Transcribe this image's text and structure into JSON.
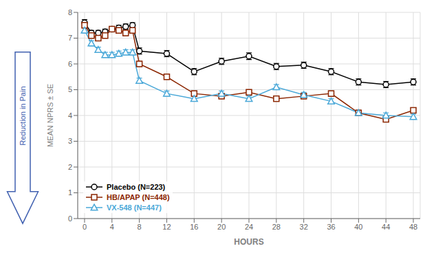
{
  "chart_data": {
    "type": "line",
    "x": [
      0,
      1,
      2,
      3,
      4,
      5,
      6,
      7,
      8,
      12,
      16,
      20,
      24,
      28,
      32,
      36,
      40,
      44,
      48
    ],
    "series": [
      {
        "name": "Placebo (N=223)",
        "color": "#000000",
        "marker": "circle",
        "values": [
          7.6,
          7.2,
          7.2,
          7.25,
          7.35,
          7.4,
          7.45,
          7.5,
          6.5,
          6.4,
          5.7,
          6.1,
          6.3,
          5.9,
          5.95,
          5.7,
          5.3,
          5.2,
          5.3
        ],
        "errors": [
          0.12,
          0.1,
          0.1,
          0.1,
          0.1,
          0.1,
          0.1,
          0.1,
          0.12,
          0.12,
          0.12,
          0.12,
          0.13,
          0.12,
          0.12,
          0.12,
          0.12,
          0.12,
          0.12
        ]
      },
      {
        "name": "HB/APAP (N=448)",
        "color": "#8B2500",
        "marker": "square",
        "values": [
          7.5,
          7.1,
          7.0,
          7.1,
          7.35,
          7.3,
          7.2,
          7.3,
          6.0,
          5.5,
          4.85,
          4.75,
          4.9,
          4.65,
          4.75,
          4.85,
          4.1,
          3.85,
          4.2
        ],
        "errors": [
          0.1,
          0.1,
          0.1,
          0.1,
          0.1,
          0.1,
          0.1,
          0.1,
          0.1,
          0.1,
          0.1,
          0.1,
          0.1,
          0.1,
          0.1,
          0.1,
          0.1,
          0.1,
          0.1
        ]
      },
      {
        "name": "VX-548 (N=447)",
        "color": "#4AA8D8",
        "marker": "triangle",
        "values": [
          7.3,
          6.8,
          6.55,
          6.35,
          6.35,
          6.4,
          6.45,
          6.45,
          5.35,
          4.85,
          4.65,
          4.85,
          4.65,
          5.1,
          4.8,
          4.55,
          4.1,
          4.0,
          3.95
        ],
        "errors": [
          0.1,
          0.1,
          0.1,
          0.1,
          0.1,
          0.1,
          0.1,
          0.1,
          0.1,
          0.1,
          0.1,
          0.1,
          0.1,
          0.1,
          0.1,
          0.1,
          0.1,
          0.1,
          0.1
        ]
      }
    ],
    "x_label": "HOURS",
    "y_label": "MEAN NPRS ± SE",
    "xlim": [
      -1,
      49
    ],
    "xticks": [
      0,
      4,
      8,
      12,
      16,
      20,
      24,
      28,
      32,
      36,
      40,
      44,
      48
    ],
    "ylim": [
      0,
      8
    ],
    "yticks": [
      0,
      1,
      2,
      3,
      4,
      5,
      6,
      7,
      8
    ],
    "grid": true,
    "legend": "lower left",
    "annotations": [
      {
        "text": "Reduction in Pain",
        "color": "#4060B0"
      }
    ]
  }
}
